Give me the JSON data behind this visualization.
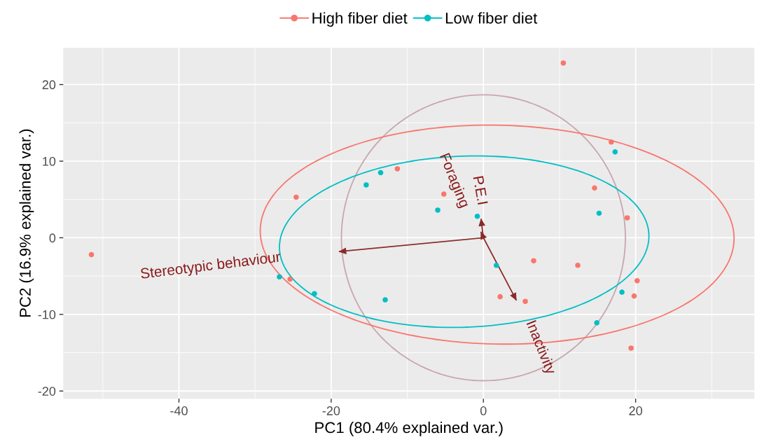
{
  "chart_data": {
    "type": "scatter",
    "xlabel": "PC1 (80.4% explained var.)",
    "ylabel": "PC2 (16.9% explained var.)",
    "xlim": [
      -55.2,
      35.6
    ],
    "ylim": [
      -21.0,
      24.8
    ],
    "xticks": [
      -40,
      -20,
      0,
      20
    ],
    "yticks": [
      -20,
      -10,
      0,
      10,
      20
    ],
    "grid": true,
    "legend": "top",
    "series": [
      {
        "name": "High fiber diet",
        "color": "#f8766d",
        "marker": "circle",
        "x": [
          -51.5,
          10.5,
          16.8,
          14.6,
          18.9,
          12.4,
          6.6,
          2.2,
          5.5,
          20.2,
          19.8,
          19.4,
          -5.2,
          -11.3,
          -24.6,
          -25.4
        ],
        "values": [
          -2.2,
          22.8,
          12.5,
          6.5,
          2.6,
          -3.6,
          -3.0,
          -7.7,
          -8.3,
          -5.6,
          -7.6,
          -14.4,
          5.7,
          9.0,
          5.3,
          -5.4
        ]
      },
      {
        "name": "Low fiber diet",
        "color": "#00bfc4",
        "marker": "circle",
        "x": [
          17.3,
          15.2,
          -0.8,
          -6.0,
          -13.5,
          -15.4,
          1.7,
          -12.9,
          -22.2,
          -26.8,
          18.2,
          14.9
        ],
        "values": [
          11.2,
          3.2,
          2.8,
          3.6,
          8.5,
          6.9,
          -3.6,
          -8.1,
          -7.3,
          -5.1,
          -7.1,
          -11.1
        ]
      },
      {
        "type": "line",
        "marker": "none",
        "color": "#8b2a2a",
        "x": [
          0,
          -18.9
        ],
        "values": [
          0,
          -1.8
        ]
      },
      {
        "type": "line",
        "marker": "none",
        "color": "#8b2a2a",
        "x": [
          0,
          -0.3
        ],
        "values": [
          0,
          2.4
        ]
      },
      {
        "type": "line",
        "marker": "none",
        "color": "#8b2a2a",
        "x": [
          0,
          -0.3
        ],
        "values": [
          0,
          0.7
        ]
      },
      {
        "type": "line",
        "marker": "none",
        "color": "#8b2a2a",
        "x": [
          0,
          4.3
        ],
        "values": [
          0,
          -8.1
        ]
      }
    ],
    "annotations": [
      "Stereotypic behaviour",
      "Foraging",
      "P.E.I",
      "Inactivity"
    ]
  }
}
